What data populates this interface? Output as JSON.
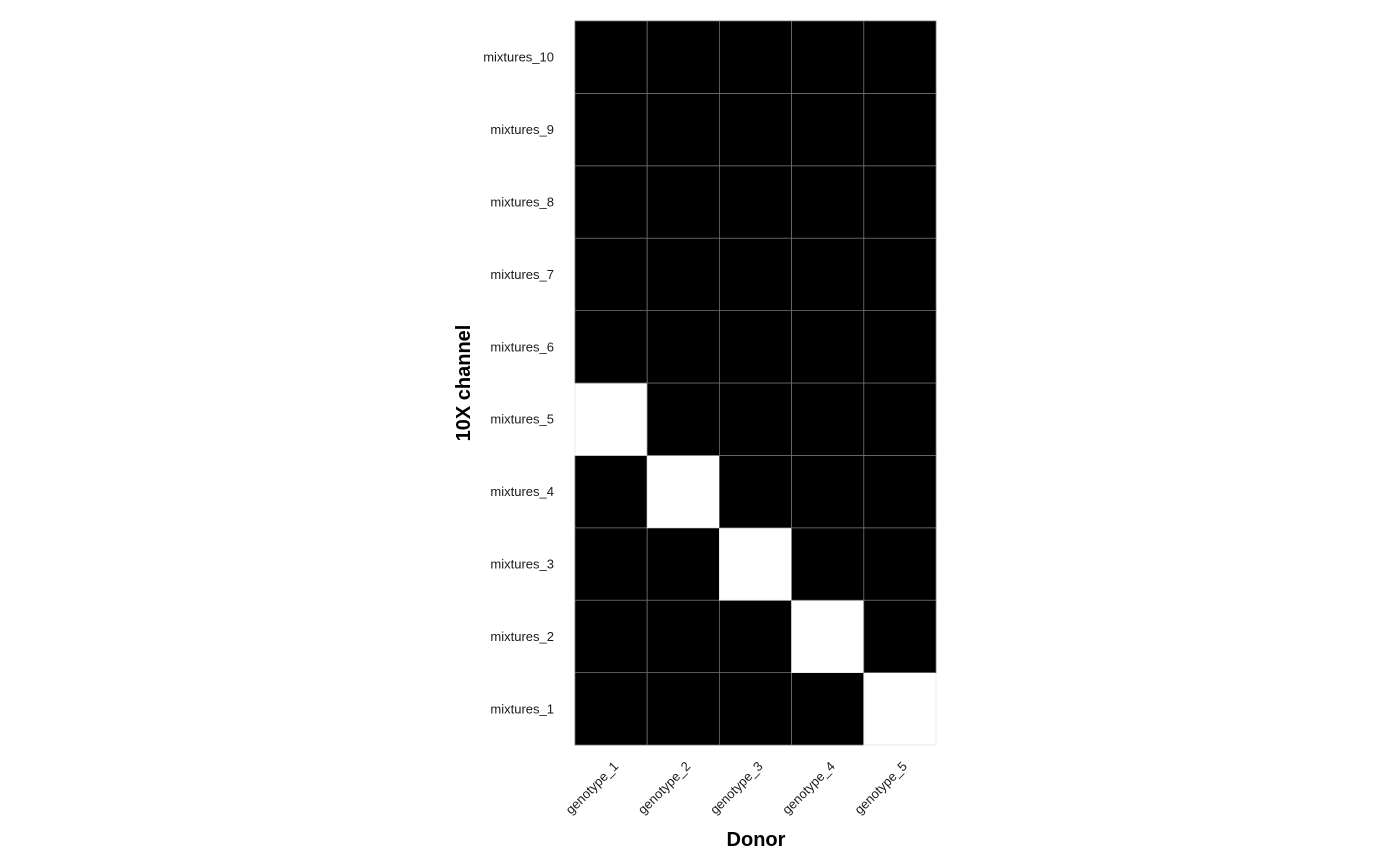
{
  "chart_data": {
    "type": "heatmap",
    "title": "",
    "xlabel": "Donor",
    "ylabel": "10X channel",
    "x_categories": [
      "genotype_1",
      "genotype_2",
      "genotype_3",
      "genotype_4",
      "genotype_5"
    ],
    "y_categories": [
      "mixtures_1",
      "mixtures_2",
      "mixtures_3",
      "mixtures_4",
      "mixtures_5",
      "mixtures_6",
      "mixtures_7",
      "mixtures_8",
      "mixtures_9",
      "mixtures_10"
    ],
    "values": [
      [
        0,
        0,
        0,
        0,
        1
      ],
      [
        0,
        0,
        0,
        1,
        0
      ],
      [
        0,
        0,
        1,
        0,
        0
      ],
      [
        0,
        1,
        0,
        0,
        0
      ],
      [
        1,
        0,
        0,
        0,
        0
      ],
      [
        0,
        0,
        0,
        0,
        0
      ],
      [
        0,
        0,
        0,
        0,
        0
      ],
      [
        0,
        0,
        0,
        0,
        0
      ],
      [
        0,
        0,
        0,
        0,
        0
      ],
      [
        0,
        0,
        0,
        0,
        0
      ]
    ],
    "legend": "none",
    "grid": false,
    "colors": {
      "low": "#000000",
      "high": "#ffffff",
      "cell_border": "#6e6e6e"
    }
  }
}
